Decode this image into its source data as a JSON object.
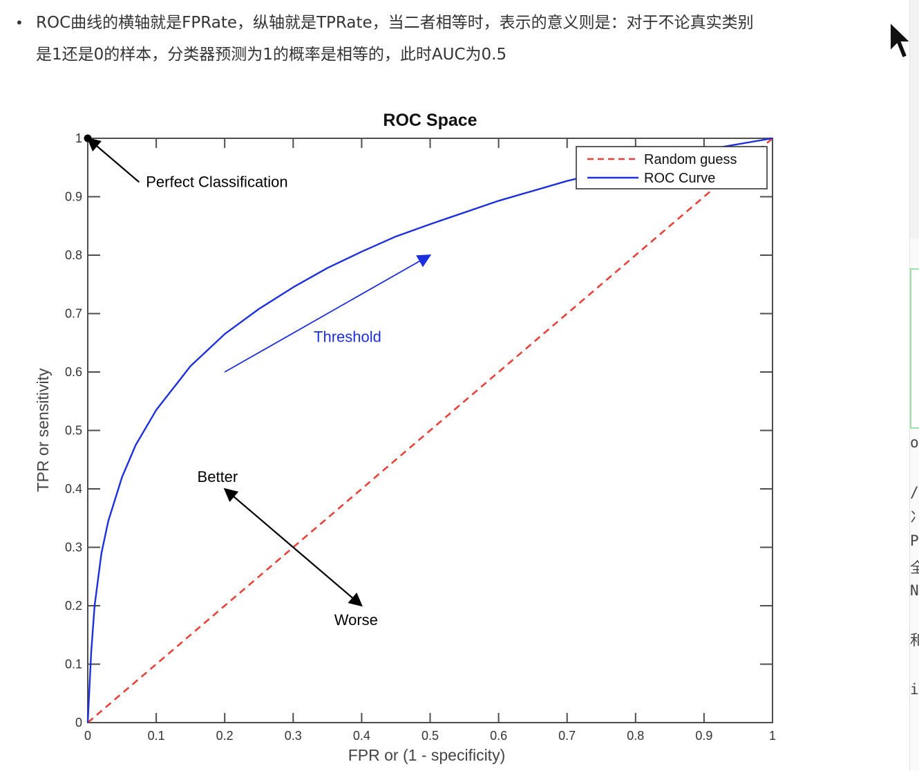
{
  "note": {
    "bullet": "•",
    "line1": "ROC曲线的横轴就是FPRate，纵轴就是TPRate，当二者相等时，表示的意义则是：对于不论真实类别",
    "line2": "是1还是0的样本，分类器预测为1的概率是相等的，此时AUC为0.5"
  },
  "right_panel": {
    "fragments": [
      "o",
      "/",
      "冫",
      "P",
      "全",
      "N",
      "和",
      "i"
    ]
  },
  "chart_data": {
    "type": "line",
    "title": "ROC Space",
    "xlabel": "FPR or (1 - specificity)",
    "ylabel": "TPR or sensitivity",
    "xlim": [
      0,
      1
    ],
    "ylim": [
      0,
      1
    ],
    "xticks": [
      "0",
      "0.1",
      "0.2",
      "0.3",
      "0.4",
      "0.5",
      "0.6",
      "0.7",
      "0.8",
      "0.9",
      "1"
    ],
    "yticks": [
      "0",
      "0.1",
      "0.2",
      "0.3",
      "0.4",
      "0.5",
      "0.6",
      "0.7",
      "0.8",
      "0.9",
      "1"
    ],
    "grid": false,
    "legend_position": "top-right",
    "series": [
      {
        "name": "Random guess",
        "style": "dashed",
        "color": "#e8413a",
        "x": [
          0,
          1
        ],
        "y": [
          0,
          1
        ]
      },
      {
        "name": "ROC Curve",
        "style": "solid",
        "color": "#1c2fdc",
        "x": [
          0,
          0.005,
          0.01,
          0.02,
          0.03,
          0.05,
          0.07,
          0.1,
          0.15,
          0.2,
          0.25,
          0.3,
          0.35,
          0.4,
          0.45,
          0.5,
          0.6,
          0.7,
          0.8,
          0.9,
          1.0
        ],
        "y": [
          0,
          0.12,
          0.2,
          0.29,
          0.345,
          0.42,
          0.475,
          0.535,
          0.61,
          0.665,
          0.708,
          0.745,
          0.778,
          0.806,
          0.832,
          0.853,
          0.893,
          0.927,
          0.955,
          0.98,
          1.0
        ]
      }
    ],
    "annotations": [
      {
        "text": "Perfect Classification",
        "x": 0.085,
        "y": 0.925,
        "arrow_from": [
          0.075,
          0.925
        ],
        "arrow_to": [
          0.0,
          1.0
        ],
        "color": "#000000"
      },
      {
        "text": "Threshold",
        "x": 0.33,
        "y": 0.66,
        "arrow_from": [
          0.2,
          0.6
        ],
        "arrow_to": [
          0.5,
          0.8
        ],
        "color": "#1c2fdc"
      },
      {
        "text": "Better",
        "x": 0.16,
        "y": 0.42,
        "arrow_from": [
          0.3,
          0.3
        ],
        "arrow_to": [
          0.2,
          0.4
        ],
        "color": "#000000"
      },
      {
        "text": "Worse",
        "x": 0.36,
        "y": 0.175,
        "arrow_from": [
          0.3,
          0.3
        ],
        "arrow_to": [
          0.4,
          0.2
        ],
        "color": "#000000"
      }
    ],
    "markers": [
      {
        "x": 0,
        "y": 1,
        "color": "#000000"
      }
    ]
  }
}
